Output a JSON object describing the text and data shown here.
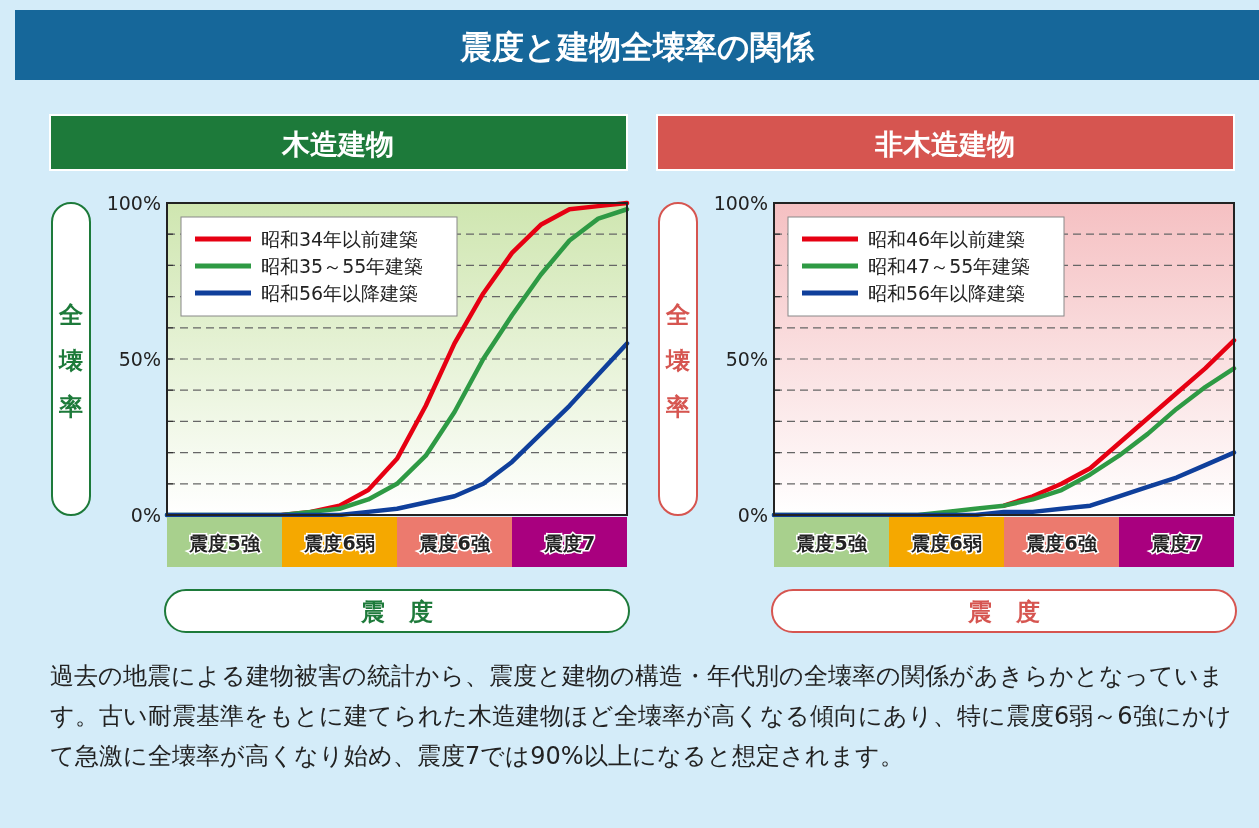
{
  "chart_data": [
    {
      "type": "line",
      "title": "木造建物",
      "ylabel": "全壊率",
      "xlabel": "震　度",
      "annotations": [
        "震度と建物全壊率の関係",
        "過去の地震による建物被害の統計から、震度と建物の構造・年代別の全壊率の関係があきらかとなっています。古い耐震基準をもとに建てられた木造建物ほど全壊率が高くなる傾向にあり、特に震度6弱～6強にかけて急激に全壊率が高くなり始め、震度7では90%以上になると想定されます。",
        "震度5強",
        "震度6弱",
        "震度6強",
        "震度7"
      ],
      "categories": [
        null,
        null,
        null,
        null,
        null,
        null,
        null,
        null,
        null,
        null,
        null,
        null,
        null,
        null,
        null,
        null,
        null
      ],
      "ylim": [
        0,
        100
      ],
      "yticks": [
        {
          "value": 0,
          "label": "0%"
        },
        {
          "value": 10,
          "label": null
        },
        {
          "value": 20,
          "label": null
        },
        {
          "value": 30,
          "label": null
        },
        {
          "value": 40,
          "label": null
        },
        {
          "value": 50,
          "label": "50%"
        },
        {
          "value": 60,
          "label": null
        },
        {
          "value": 70,
          "label": null
        },
        {
          "value": 80,
          "label": null
        },
        {
          "value": 90,
          "label": null
        },
        {
          "value": 100,
          "label": "100%"
        }
      ],
      "tick_labels": "y",
      "grid": "y",
      "legend": "top left",
      "marker": "none",
      "line_style": "solid",
      "series": [
        {
          "name": "昭和34年以前建築",
          "color": "#e60012",
          "values": [
            null,
            null,
            null,
            null,
            0,
            1,
            3,
            8,
            18,
            35,
            55,
            71,
            84,
            93,
            98,
            99,
            100
          ]
        },
        {
          "name": "昭和35～55年建築",
          "color": "#2e9a44",
          "values": [
            0,
            0,
            0,
            0,
            0,
            1,
            2,
            5,
            10,
            19,
            33,
            50,
            64,
            77,
            88,
            95,
            98
          ]
        },
        {
          "name": "昭和56年以降建築",
          "color": "#0f3f9b",
          "values": [
            0,
            0,
            0,
            0,
            0,
            0,
            0,
            1,
            2,
            4,
            6,
            10,
            17,
            26,
            35,
            45,
            55
          ]
        }
      ]
    },
    {
      "type": "line",
      "title": "非木造建物",
      "ylabel": "全壊率",
      "xlabel": "震　度",
      "annotations": [
        "震度5強",
        "震度6弱",
        "震度6強",
        "震度7"
      ],
      "categories": [
        null,
        null,
        null,
        null,
        null,
        null,
        null,
        null,
        null,
        null,
        null,
        null,
        null,
        null,
        null,
        null,
        null
      ],
      "ylim": [
        0,
        100
      ],
      "yticks": [
        {
          "value": 0,
          "label": "0%"
        },
        {
          "value": 10,
          "label": null
        },
        {
          "value": 20,
          "label": null
        },
        {
          "value": 30,
          "label": null
        },
        {
          "value": 40,
          "label": null
        },
        {
          "value": 50,
          "label": "50%"
        },
        {
          "value": 60,
          "label": null
        },
        {
          "value": 70,
          "label": null
        },
        {
          "value": 80,
          "label": null
        },
        {
          "value": 90,
          "label": null
        },
        {
          "value": 100,
          "label": "100%"
        }
      ],
      "tick_labels": "y",
      "grid": "y",
      "legend": "top left",
      "marker": "none",
      "line_style": "solid",
      "series": [
        {
          "name": "昭和46年以前建築",
          "color": "#e60012",
          "values": [
            null,
            null,
            null,
            null,
            null,
            null,
            null,
            null,
            3,
            6,
            10,
            15,
            23,
            31,
            39,
            47,
            56
          ]
        },
        {
          "name": "昭和47～55年建築",
          "color": "#2e9a44",
          "values": [
            0,
            0,
            0,
            0,
            0,
            0,
            1,
            2,
            3,
            5,
            8,
            13,
            19,
            26,
            34,
            41,
            47
          ]
        },
        {
          "name": "昭和56年以降建築",
          "color": "#0f3f9b",
          "values": [
            0,
            0,
            0,
            0,
            0,
            0,
            0,
            0,
            1,
            1,
            2,
            3,
            6,
            9,
            12,
            16,
            20
          ]
        }
      ]
    }
  ]
}
